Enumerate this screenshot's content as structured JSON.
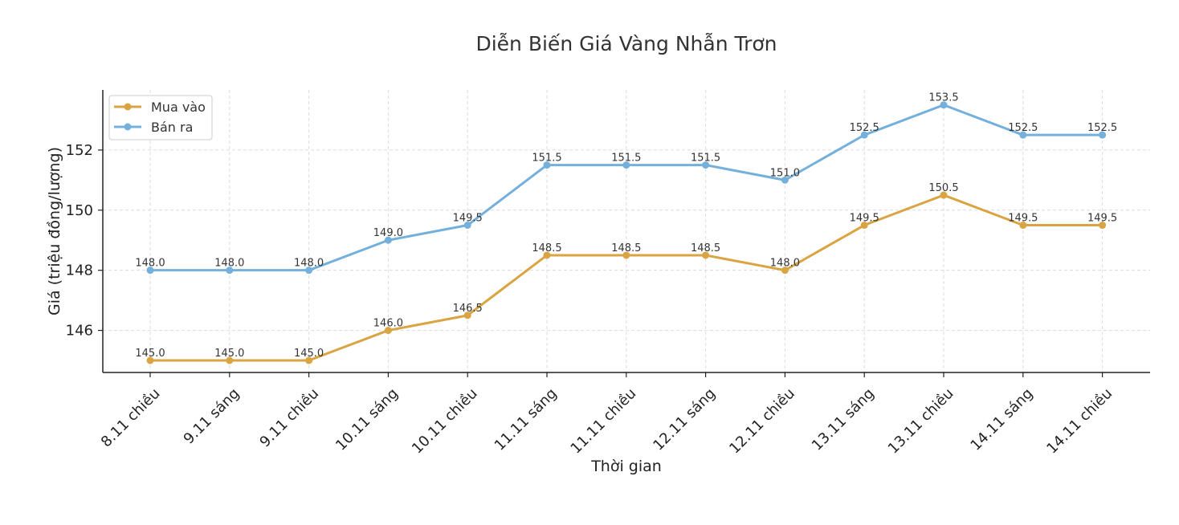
{
  "chart_data": {
    "type": "line",
    "title": "Diễn Biến Giá Vàng Nhẫn Trơn",
    "xlabel": "Thời gian",
    "ylabel": "Giá (triệu đồng/lượng)",
    "categories": [
      "8.11 chiều",
      "9.11 sáng",
      "9.11 chiều",
      "10.11 sáng",
      "10.11 chiều",
      "11.11 sáng",
      "11.11 chiều",
      "12.11 sáng",
      "12.11 chiều",
      "13.11 sáng",
      "13.11 chiều",
      "14.11 sáng",
      "14.11 chiều"
    ],
    "series": [
      {
        "name": "Mua vào",
        "color": "#d9a441",
        "values": [
          145.0,
          145.0,
          145.0,
          146.0,
          146.5,
          148.5,
          148.5,
          148.5,
          148.0,
          149.5,
          150.5,
          149.5,
          149.5
        ]
      },
      {
        "name": "Bán ra",
        "color": "#74b0dc",
        "values": [
          148.0,
          148.0,
          148.0,
          149.0,
          149.5,
          151.5,
          151.5,
          151.5,
          151.0,
          152.5,
          153.5,
          152.5,
          152.5
        ]
      }
    ],
    "yticks": [
      146,
      148,
      150,
      152
    ],
    "ylim": [
      144.6,
      154.0
    ],
    "grid": true,
    "legend": "top-left"
  }
}
